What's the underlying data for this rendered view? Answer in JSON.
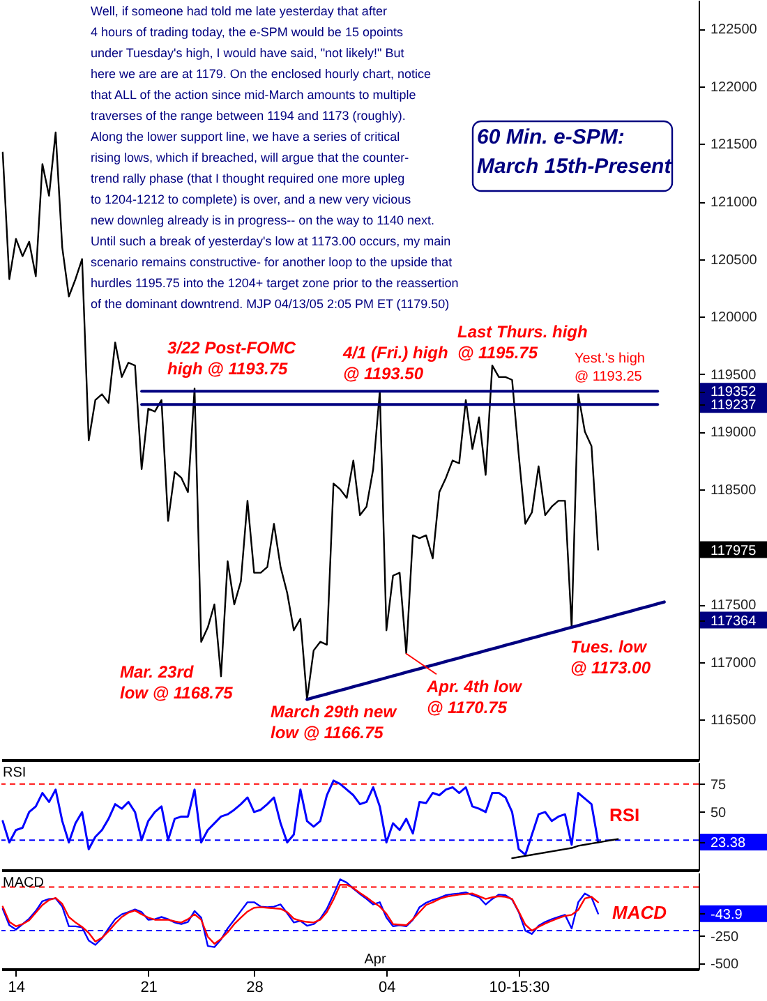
{
  "chart_data": [
    {
      "type": "line",
      "title": "60 Min. e-SPM:\nMarch 15th-Present",
      "ylim": [
        116150,
        122750
      ],
      "yticks": [
        116500,
        117000,
        {
          "value": 117364,
          "label": "117364"
        },
        117500,
        {
          "value": 117975,
          "label": "117975"
        },
        118500,
        119000,
        {
          "value": 119237,
          "label": "119237"
        },
        {
          "value": 119352,
          "label": "119352"
        },
        119500,
        120000,
        120500,
        121000,
        121500,
        122000,
        122500
      ],
      "tick_labels": "y",
      "categories": [
        null,
        null,
        null,
        null,
        null,
        null,
        null,
        null,
        null,
        null,
        null,
        null,
        null,
        null,
        null,
        null,
        null,
        null,
        null,
        null,
        null,
        null,
        null,
        null,
        null,
        null,
        null,
        null,
        null,
        null,
        null,
        null,
        null,
        null,
        null,
        null,
        null,
        null,
        null,
        null,
        null,
        null,
        null,
        null,
        null,
        null,
        null,
        null,
        null,
        null,
        null,
        null,
        null,
        null,
        null,
        null,
        null,
        null,
        null,
        null,
        null,
        null,
        null,
        null,
        null,
        null,
        null,
        null,
        null,
        null,
        null,
        null,
        null,
        null,
        null,
        null,
        null,
        null,
        null,
        null,
        null,
        null,
        null,
        null,
        null,
        null,
        null,
        null,
        null,
        null,
        null,
        null,
        null,
        null,
        null,
        null,
        null,
        null,
        null,
        null,
        null,
        null,
        null,
        null,
        null,
        null
      ],
      "annotations": [
        "Well, if someone had told me late yesterday that after\n4 hours of trading today, the e-SPM would be 15 opoints\nunder Tuesday's high, I would have said, \"not likely!\" But\nhere we are are at 1179. On the enclosed hourly chart, notice\nthat ALL of the action since mid-March amounts to multiple\ntraverses of the range between 1194 and 1173 (roughly).\nAlong the lower support line, we have a series of critical\nrising lows, which if breached, will argue that the counter-\ntrend rally phase (that I thought required one more upleg\nto 1204-1212 to complete) is over, and a new very vicious\nnew downleg already is in progress-- on the way to 1140 next.\nUntil such a break of yesterday's low at 1173.00 occurs, my main\nscenario remains constructive- for another loop to the upside that\nhurdles 1195.75 into the 1204+ target zone prior to the reassertion\nof the dominant downtrend.  MJP 04/13/05  2:05 PM ET (1179.50)",
        {
          "text": "3/22 Post-FOMC\nhigh @ 1193.75",
          "y": 119375
        },
        {
          "text": "4/1 (Fri.) high\n@ 1193.50",
          "y": 119350
        },
        "Last Thurs. high\n@ 1195.75",
        {
          "text": "Yest.'s high\n@ 1193.25",
          "y": 119325
        },
        "Mar. 23rd\nlow @ 1168.75",
        {
          "text": "March 29th new\nlow @ 1166.75",
          "y": 116675
        },
        {
          "text": "Apr. 4th low\n@ 1170.75",
          "y": 117075
        },
        "Tues. low\n@ 1173.00"
      ],
      "series": [
        {
          "color": "#000000",
          "values": [
            121425,
            120325,
            120675,
            120525,
            120650,
            120350,
            121325,
            121050,
            121600,
            120600,
            120175,
            120325,
            120500,
            118925,
            119275,
            119325,
            119250,
            119775,
            119475,
            119600,
            119575,
            118675,
            119200,
            119175,
            119275,
            118225,
            118650,
            118600,
            118475,
            119375,
            117175,
            117300,
            117500,
            116875,
            117875,
            117500,
            117700,
            118400,
            117775,
            117775,
            117825,
            118200,
            117825,
            117600,
            117275,
            117375,
            116675,
            117100,
            117175,
            117150,
            118550,
            118500,
            118425,
            118750,
            118275,
            118350,
            118675,
            119350,
            117275,
            117750,
            117775,
            117075,
            118100,
            118075,
            118100,
            117900,
            118475,
            118600,
            118750,
            118725,
            119275,
            118850,
            119125,
            118625,
            119575,
            119475,
            119475,
            119450,
            118800,
            118200,
            118300,
            118700,
            118275,
            118350,
            118400,
            118400,
            117300,
            119325,
            119000,
            118875,
            117975,
            null,
            null,
            null,
            null,
            null,
            null,
            null,
            null,
            null,
            null,
            null,
            null,
            null,
            null,
            null
          ]
        },
        {
          "color": "#000080",
          "values": [
            null,
            null,
            null,
            null,
            null,
            null,
            null,
            null,
            null,
            null,
            null,
            null,
            null,
            null,
            null,
            null,
            null,
            null,
            null,
            null,
            null,
            119352,
            119352,
            119352,
            119352,
            119352,
            119352,
            119352,
            119352,
            119352,
            119352,
            119352,
            119352,
            119352,
            119352,
            119352,
            119352,
            119352,
            119352,
            119352,
            119352,
            119352,
            119352,
            119352,
            119352,
            119352,
            119352,
            119352,
            119352,
            119352,
            119352,
            119352,
            119352,
            119352,
            119352,
            119352,
            119352,
            119352,
            119352,
            119352,
            119352,
            119352,
            119352,
            119352,
            119352,
            119352,
            119352,
            119352,
            119352,
            119352,
            119352,
            119352,
            119352,
            119352,
            119352,
            119352,
            119352,
            119352,
            119352,
            119352,
            119352,
            119352,
            119352,
            119352,
            119352,
            119352,
            119352,
            119352,
            119352,
            119352,
            119352,
            119352,
            119352,
            119352,
            119352,
            119352,
            119352,
            119352,
            119352,
            119352,
            null,
            null,
            null,
            null,
            null,
            null
          ]
        },
        {
          "color": "#000080",
          "values": [
            null,
            null,
            null,
            null,
            null,
            null,
            null,
            null,
            null,
            null,
            null,
            null,
            null,
            null,
            null,
            null,
            null,
            null,
            null,
            null,
            null,
            119237,
            119237,
            119237,
            119237,
            119237,
            119237,
            119237,
            119237,
            119237,
            119237,
            119237,
            119237,
            119237,
            119237,
            119237,
            119237,
            119237,
            119237,
            119237,
            119237,
            119237,
            119237,
            119237,
            119237,
            119237,
            119237,
            119237,
            119237,
            119237,
            119237,
            119237,
            119237,
            119237,
            119237,
            119237,
            119237,
            119237,
            119237,
            119237,
            119237,
            119237,
            119237,
            119237,
            119237,
            119237,
            119237,
            119237,
            119237,
            119237,
            119237,
            119237,
            119237,
            119237,
            119237,
            119237,
            119237,
            119237,
            119237,
            119237,
            119237,
            119237,
            119237,
            119237,
            119237,
            119237,
            119237,
            119237,
            119237,
            119237,
            119237,
            119237,
            119237,
            119237,
            119237,
            119237,
            119237,
            119237,
            119237,
            119237,
            null,
            null,
            null,
            null,
            null,
            null
          ]
        },
        {
          "color": "#000080",
          "values": [
            null,
            null,
            null,
            null,
            null,
            null,
            null,
            null,
            null,
            null,
            null,
            null,
            null,
            null,
            null,
            null,
            null,
            null,
            null,
            null,
            null,
            null,
            null,
            null,
            null,
            null,
            null,
            null,
            null,
            null,
            null,
            null,
            null,
            null,
            null,
            null,
            null,
            null,
            null,
            null,
            null,
            null,
            null,
            null,
            null,
            null,
            116675,
            116691,
            116706,
            116722,
            116738,
            116753,
            116769,
            116785,
            116800,
            116816,
            116832,
            116847,
            116863,
            116879,
            116894,
            116910,
            116926,
            116941,
            116957,
            116973,
            116988,
            117004,
            117020,
            117035,
            117051,
            117066,
            117082,
            117098,
            117113,
            117129,
            117145,
            117160,
            117176,
            117192,
            117207,
            117223,
            117239,
            117254,
            117270,
            117286,
            117301,
            117317,
            117333,
            117348,
            117364,
            117380,
            117395,
            117411,
            117427,
            117442,
            117458,
            117474,
            117489,
            117505,
            117521,
            null,
            null,
            null,
            null,
            null
          ]
        }
      ]
    },
    {
      "type": "line",
      "title": "RSI",
      "ylim": [
        -1.5,
        94
      ],
      "yticks": [
        {
          "value": 23.38,
          "label": "23.38"
        },
        50,
        75
      ],
      "tick_labels": "y",
      "categories": [
        null,
        null,
        null,
        null,
        null,
        null,
        null,
        null,
        null,
        null,
        null,
        null,
        null,
        null,
        null,
        null,
        null,
        null,
        null,
        null,
        null,
        null,
        null,
        null,
        null,
        null,
        null,
        null,
        null,
        null,
        null,
        null,
        null,
        null,
        null,
        null,
        null,
        null,
        null,
        null,
        null,
        null,
        null,
        null,
        null,
        null,
        null,
        null,
        null,
        null,
        null,
        null,
        null,
        null,
        null,
        null,
        null,
        null,
        null,
        null,
        null,
        null,
        null,
        null,
        null,
        null,
        null,
        null,
        null,
        null,
        null,
        null,
        null,
        null,
        null,
        null,
        null,
        null,
        null,
        null,
        null,
        null,
        null,
        null,
        null,
        null,
        null,
        null,
        null,
        null,
        null,
        null,
        null,
        null,
        null,
        null,
        null,
        null,
        null,
        null,
        null,
        null,
        null,
        null,
        null,
        null
      ],
      "ref_lines": [
        {
          "axis": "y",
          "value": 75,
          "color": "#ff0000",
          "line_style": "dashed"
        },
        {
          "axis": "y",
          "value": 25,
          "color": "#0000ff",
          "line_style": "dashed"
        }
      ],
      "series": [
        {
          "name": "RSI",
          "color": "#0000ff",
          "values": [
            42,
            23,
            34,
            36,
            50,
            55,
            67,
            59,
            70,
            42,
            23,
            40,
            50,
            17,
            28,
            34,
            44,
            57,
            53,
            59,
            50,
            25,
            42,
            50,
            55,
            25,
            44,
            46,
            46,
            70,
            23,
            34,
            40,
            46,
            48,
            52,
            57,
            63,
            50,
            52,
            57,
            63,
            40,
            23,
            30,
            70,
            42,
            37,
            42,
            65,
            78,
            75,
            70,
            65,
            57,
            59,
            72,
            55,
            23,
            40,
            34,
            44,
            31,
            59,
            58,
            67,
            65,
            70,
            72,
            67,
            72,
            55,
            53,
            50,
            67,
            67,
            63,
            50,
            17,
            12,
            30,
            48,
            50,
            42,
            46,
            48,
            21,
            67,
            62,
            57,
            23.38,
            null,
            null,
            null,
            null,
            null,
            null,
            null,
            null,
            null,
            null,
            null,
            null,
            null,
            null,
            null
          ]
        },
        {
          "color": "#000000",
          "values": [
            null,
            null,
            null,
            null,
            null,
            null,
            null,
            null,
            null,
            null,
            null,
            null,
            null,
            null,
            null,
            null,
            null,
            null,
            null,
            null,
            null,
            null,
            null,
            null,
            null,
            null,
            null,
            null,
            null,
            null,
            null,
            null,
            null,
            null,
            null,
            null,
            null,
            null,
            null,
            null,
            null,
            null,
            null,
            null,
            null,
            null,
            null,
            null,
            null,
            null,
            null,
            null,
            null,
            null,
            null,
            null,
            null,
            null,
            null,
            null,
            null,
            null,
            null,
            null,
            null,
            null,
            null,
            null,
            null,
            null,
            null,
            null,
            null,
            null,
            null,
            null,
            null,
            9,
            10,
            11,
            12,
            13,
            14,
            15,
            16,
            17,
            18,
            20,
            21,
            22,
            23,
            24,
            25,
            26,
            null,
            null,
            null,
            null,
            null,
            null,
            null,
            null,
            null,
            null,
            null,
            null
          ]
        }
      ]
    },
    {
      "type": "line",
      "title": "MACD",
      "ylim": [
        -550,
        330
      ],
      "yticks": [
        -500,
        -250,
        {
          "value": -43.9,
          "label": "-43.9"
        }
      ],
      "categories": [
        null,
        null,
        "14",
        null,
        null,
        null,
        null,
        null,
        null,
        null,
        null,
        null,
        null,
        null,
        null,
        null,
        null,
        null,
        null,
        null,
        null,
        null,
        "21",
        null,
        null,
        null,
        null,
        null,
        null,
        null,
        null,
        null,
        null,
        null,
        null,
        null,
        null,
        null,
        "28",
        null,
        null,
        null,
        null,
        null,
        null,
        null,
        null,
        null,
        null,
        null,
        null,
        null,
        null,
        null,
        null,
        null,
        null,
        null,
        "04",
        null,
        null,
        null,
        null,
        null,
        null,
        null,
        null,
        null,
        null,
        null,
        null,
        null,
        null,
        null,
        null,
        null,
        null,
        null,
        "10-15:30",
        null,
        null,
        null,
        null,
        null,
        null,
        null,
        null,
        null,
        null,
        null,
        null,
        null,
        null,
        null,
        null,
        null,
        null,
        null,
        null,
        null,
        null,
        null,
        null,
        null,
        null,
        null
      ],
      "ref_lines": [
        {
          "axis": "y",
          "value": 200,
          "color": "#ff0000",
          "line_style": "dashed"
        },
        {
          "axis": "y",
          "value": -200,
          "color": "#0000ff",
          "line_style": "dashed"
        }
      ],
      "annotations": [
        "Apr"
      ],
      "series": [
        {
          "color": "#0000ff",
          "values": [
            0,
            -150,
            -190,
            -140,
            -90,
            -20,
            70,
            90,
            95,
            20,
            -160,
            -160,
            -170,
            -290,
            -330,
            -270,
            -180,
            -95,
            -50,
            -30,
            -5,
            -30,
            -100,
            -95,
            -75,
            -95,
            -125,
            -140,
            -120,
            -20,
            -80,
            -340,
            -350,
            -280,
            -180,
            -100,
            -20,
            60,
            60,
            20,
            15,
            20,
            40,
            -40,
            -125,
            -110,
            -155,
            -140,
            -90,
            0,
            130,
            270,
            240,
            185,
            135,
            90,
            40,
            60,
            -80,
            -160,
            -150,
            -160,
            -100,
            15,
            55,
            80,
            100,
            125,
            135,
            140,
            150,
            125,
            105,
            40,
            90,
            130,
            125,
            85,
            -30,
            -200,
            -230,
            -155,
            -120,
            -95,
            -75,
            -55,
            -180,
            60,
            140,
            105,
            -43.9,
            null,
            null,
            null,
            null,
            null,
            null,
            null,
            null,
            null,
            null,
            null,
            null,
            null,
            null,
            null
          ]
        },
        {
          "name": "MACD",
          "color": "#ff0000",
          "values": [
            20,
            -120,
            -160,
            -140,
            -105,
            -35,
            35,
            80,
            100,
            45,
            -75,
            -125,
            -165,
            -220,
            -300,
            -265,
            -205,
            -135,
            -75,
            -35,
            -15,
            -50,
            -80,
            -100,
            -100,
            -100,
            -115,
            -125,
            -95,
            -50,
            -100,
            -255,
            -320,
            -275,
            -215,
            -140,
            -80,
            -25,
            10,
            15,
            10,
            5,
            0,
            -30,
            -90,
            -110,
            -120,
            -125,
            -100,
            -30,
            85,
            220,
            220,
            190,
            145,
            105,
            60,
            20,
            -45,
            -140,
            -145,
            -150,
            -95,
            -30,
            35,
            60,
            90,
            110,
            120,
            130,
            135,
            140,
            115,
            90,
            105,
            115,
            110,
            90,
            -25,
            -145,
            -200,
            -165,
            -135,
            -110,
            -85,
            -65,
            -55,
            -10,
            95,
            110,
            60,
            null,
            null,
            null,
            null,
            null,
            null,
            null,
            null,
            null,
            null,
            null,
            null,
            null,
            null,
            null
          ]
        }
      ]
    }
  ]
}
